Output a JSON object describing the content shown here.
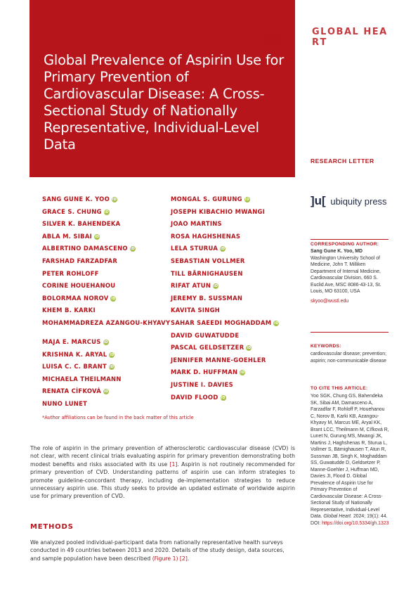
{
  "header": {
    "title": "Global Prevalence of Aspirin Use for Primary Prevention of Cardiovascular Disease: A Cross-Sectional Study of Nationally Representative, Individual-Level Data",
    "brand_letters": [
      "G",
      "L",
      "O",
      "B",
      "A",
      "L",
      " ",
      "H",
      "E",
      "A",
      "R",
      "T"
    ],
    "article_type": "RESEARCH LETTER",
    "publisher": "ubiquity press",
    "publisher_mark": "]u["
  },
  "authors_col1": [
    {
      "name": "SANG GUNE K. YOO",
      "orcid": true
    },
    {
      "name": "GRACE S. CHUNG",
      "orcid": true
    },
    {
      "name": "SILVER K. BAHENDEKA",
      "orcid": false
    },
    {
      "name": "ABLA M. SIBAI",
      "orcid": true
    },
    {
      "name": "ALBERTINO DAMASCENO",
      "orcid": true
    },
    {
      "name": "FARSHAD FARZADFAR",
      "orcid": false
    },
    {
      "name": "PETER ROHLOFF",
      "orcid": false
    },
    {
      "name": "CORINE HOUEHANOU",
      "orcid": false
    },
    {
      "name": "BOLORMAA NOROV",
      "orcid": true
    },
    {
      "name": "KHEM B. KARKI",
      "orcid": false
    },
    {
      "name": "MOHAMMADREZA AZANGOU-KHYAVY",
      "orcid": false
    },
    {
      "name": "MAJA E. MARCUS",
      "orcid": true
    },
    {
      "name": "KRISHNA K. ARYAL",
      "orcid": true
    },
    {
      "name": "LUISA C. C. BRANT",
      "orcid": true
    },
    {
      "name": "MICHAELA THEILMANN",
      "orcid": false
    },
    {
      "name": "RENATA CÍFKOVÁ",
      "orcid": true
    },
    {
      "name": "NUNO LUNET",
      "orcid": false
    }
  ],
  "authors_col2": [
    {
      "name": "MONGAL S. GURUNG",
      "orcid": true
    },
    {
      "name": "JOSEPH KIBACHIO MWANGI",
      "orcid": false
    },
    {
      "name": "JOAO MARTINS",
      "orcid": false
    },
    {
      "name": "ROSA HAGHSHENAS",
      "orcid": false
    },
    {
      "name": "LELA STURUA",
      "orcid": true
    },
    {
      "name": "SEBASTIAN VOLLMER",
      "orcid": false
    },
    {
      "name": "TILL BÄRNIGHAUSEN",
      "orcid": false
    },
    {
      "name": "RIFAT ATUN",
      "orcid": true
    },
    {
      "name": "JEREMY B. SUSSMAN",
      "orcid": false
    },
    {
      "name": "KAVITA SINGH",
      "orcid": false
    },
    {
      "name": "SAHAR SAEEDI MOGHADDAM",
      "orcid": true
    },
    {
      "name": "DAVID GUWATUDDE",
      "orcid": false
    },
    {
      "name": "PASCAL GELDSETZER",
      "orcid": true
    },
    {
      "name": "JENNIFER MANNE-GOEHLER",
      "orcid": false
    },
    {
      "name": "MARK D. HUFFMAN",
      "orcid": true
    },
    {
      "name": "JUSTINE I. DAVIES",
      "orcid": false
    },
    {
      "name": "DAVID FLOOD",
      "orcid": true
    }
  ],
  "affiliation_note": "*Author affiliations can be found in the back matter of this article",
  "corresponding": {
    "heading": "CORRESPONDING AUTHOR:",
    "name": "Sang Gune K. Yoo, MD",
    "address": "Washington University School of Medicine, John T. Milliken Department of Internal Medicine, Cardiovascular Division, 660 S. Euclid Ave, MSC 8086-43-13, St. Louis, MO 63100, USA",
    "email": "skyoo@wustl.edu"
  },
  "keywords": {
    "heading": "KEYWORDS:",
    "text": "cardiovascular disease; prevention; aspirin; non-communicable disease"
  },
  "cite": {
    "heading": "TO CITE THIS ARTICLE:",
    "text": "Yoo SGK, Chung GS, Bahendeka SK, Sibai AM, Damasceno A, Farzadfar F, Rohloff P, Houehanou C, Norov B, Karki KB, Azangou-Khyavy M, Marcus ME, Aryal KK, Brant LCC, Theilmann M, Cífková R, Lunet N, Gurung MS, Mwangi JK, Martins J, Haghshenas R, Sturua L, Vollmer S, Bärnighausen T, Atun R, Sussman JB, Singh K, Moghaddam SS, Guwatudde D, Geldsetzer P, Manne-Goehler J, Huffman MD, Davies JI, Flood D. Global Prevalence of Aspirin Use for Primary Prevention of Cardiovascular Disease: A Cross-Sectional Study of Nationally Representative, Individual-Level Data.",
    "journal": "Global Heart.",
    "details": "2024; 19(1): 44. DOI:",
    "doi": "https://doi.org/10.5334/gh.1323"
  },
  "abstract": {
    "p1": "The role of aspirin in the primary prevention of atherosclerotic cardiovascular disease (CVD) is not clear, with recent clinical trials evaluating aspirin for primary prevention demonstrating both modest benefits and risks associated with its use ",
    "ref1": "[1]",
    "p2": ". Aspirin is not routinely recommended for primary prevention of CVD. Understanding patterns of aspirin use can inform strategies to promote guideline-concordant therapy, including de-implementation strategies to reduce unnecessary aspirin use. This study seeks to provide an updated estimate of worldwide aspirin use for primary prevention of CVD."
  },
  "methods": {
    "heading": "METHODS",
    "p1": "We analyzed pooled individual-participant data from nationally representative health surveys conducted in 49 countries between 2013 and 2020. Details of the study design, data sources, and sample population have been described ",
    "ref": "(Figure 1) [2]",
    "p2": "."
  },
  "colors": {
    "accent": "#b5151b",
    "orcid": "#a6c04a"
  },
  "icons": {
    "open_access": "open-access-lock-icon",
    "orcid": "orcid-icon"
  }
}
